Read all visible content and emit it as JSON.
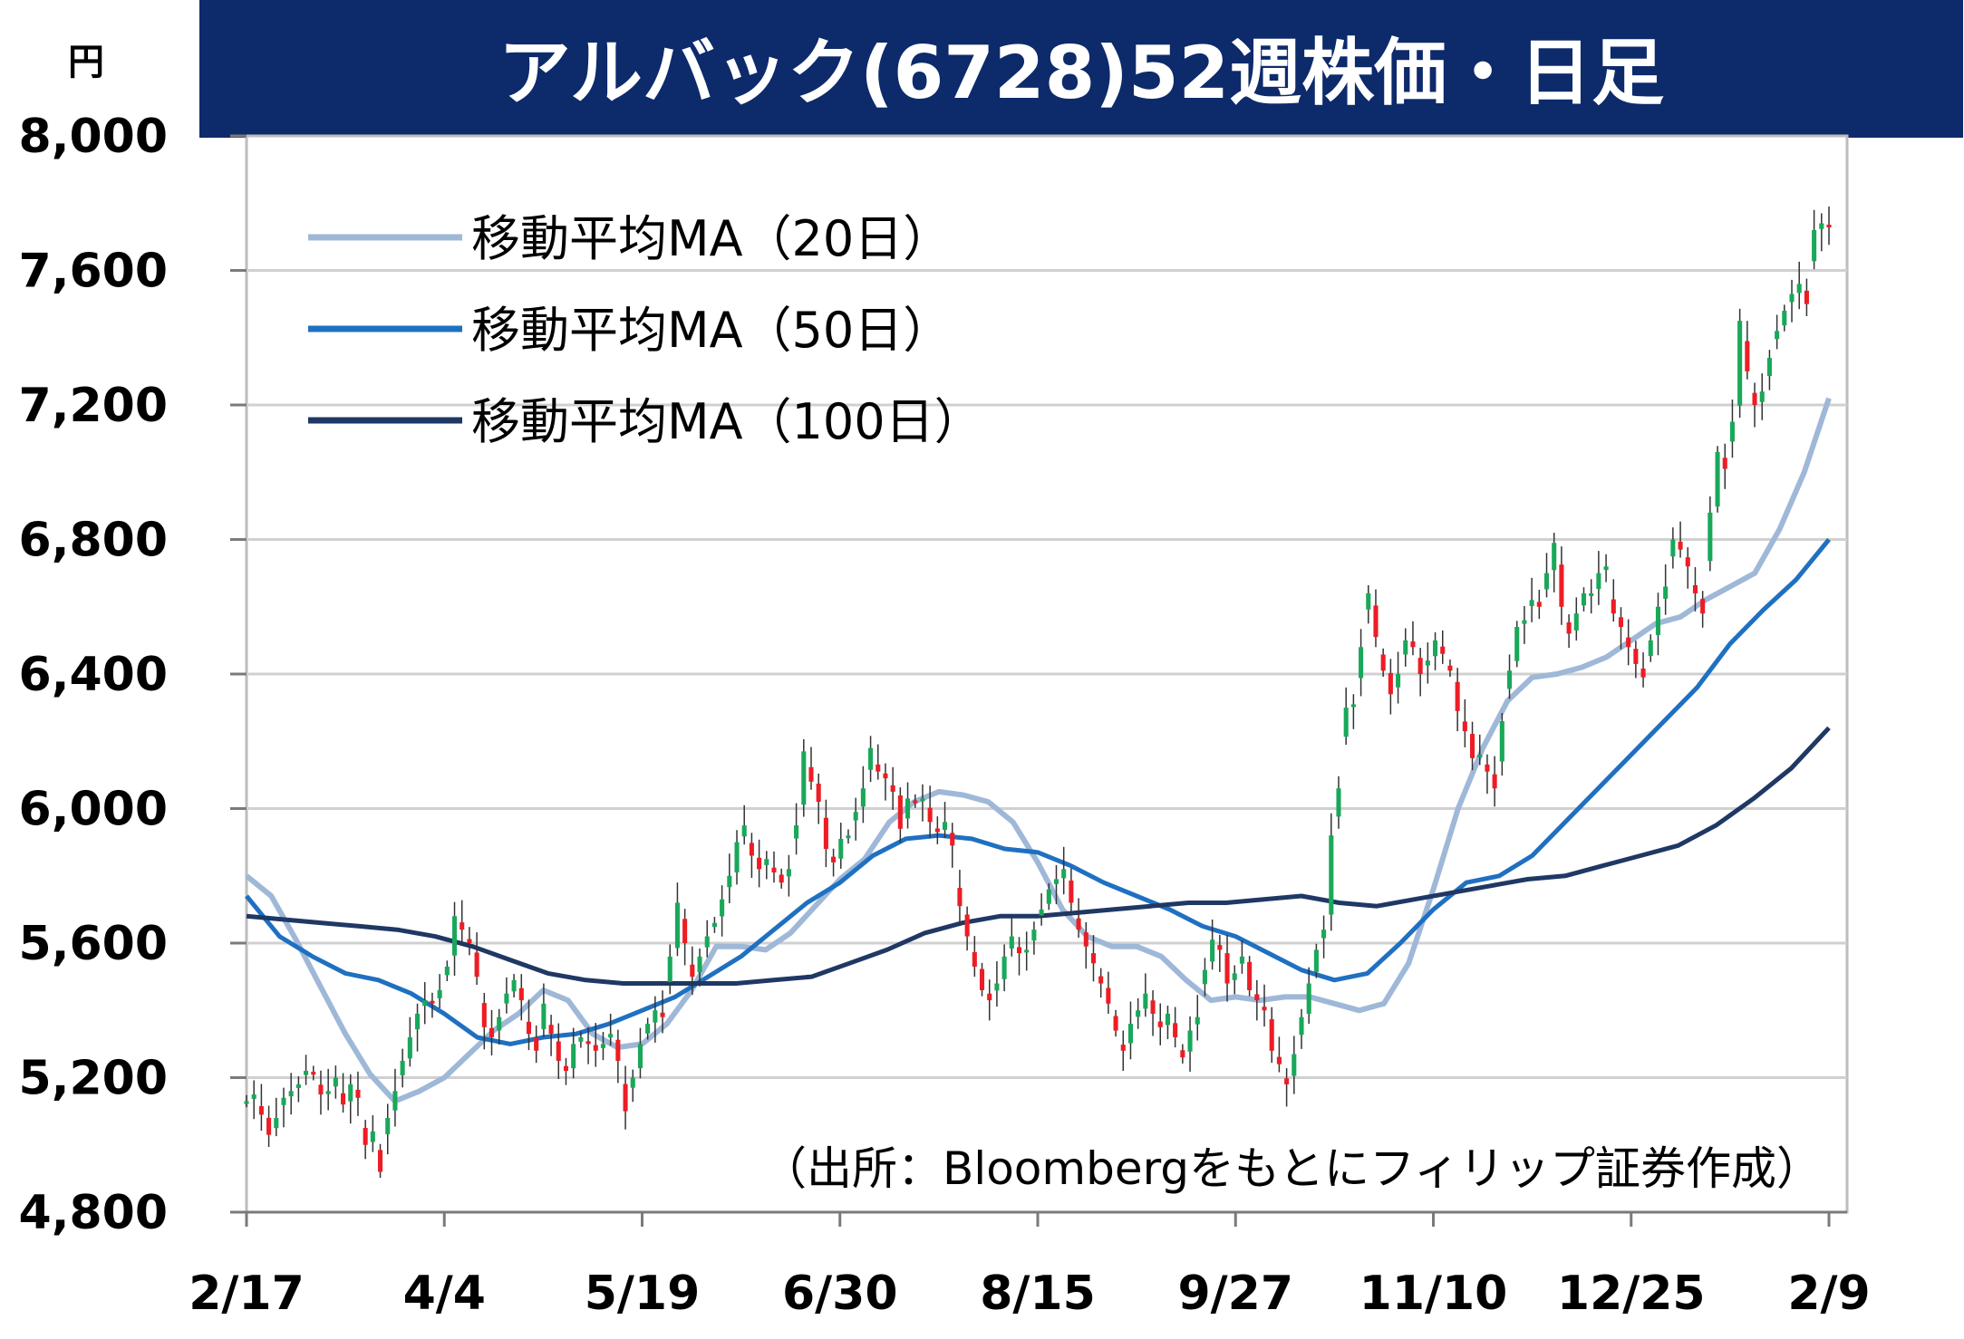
{
  "title": "アルバック(6728)52週株価・日足",
  "y_unit": "円",
  "source_note": "（出所：Bloombergをもとにフィリップ証券作成）",
  "colors": {
    "title_bg": "#0d2a6b",
    "up_candle": "#19a85a",
    "down_candle": "#ee1c24",
    "ma20": "#9fb8d8",
    "ma50": "#1f70c1",
    "ma100": "#1f3864"
  },
  "chart_data": {
    "type": "candlestick",
    "title": "アルバック(6728)52週株価・日足",
    "ylabel": "円",
    "ylim": [
      4800,
      8000
    ],
    "yticks": [
      4800,
      5200,
      5600,
      6000,
      6400,
      6800,
      7200,
      7600,
      8000
    ],
    "ytick_labels": [
      "4,800",
      "5,200",
      "5,600",
      "6,000",
      "6,400",
      "6,800",
      "7,200",
      "7,600",
      "8,000"
    ],
    "xticks": [
      "2/17",
      "4/4",
      "5/19",
      "6/30",
      "8/15",
      "9/27",
      "11/10",
      "12/25",
      "2/9"
    ],
    "grid": true,
    "legend": "top-left",
    "closes": [
      5130,
      5150,
      5090,
      5030,
      5080,
      5140,
      5160,
      5180,
      5220,
      5210,
      5150,
      5160,
      5200,
      5120,
      5180,
      5140,
      5000,
      5040,
      4920,
      5080,
      5160,
      5250,
      5320,
      5390,
      5430,
      5420,
      5460,
      5530,
      5680,
      5640,
      5600,
      5500,
      5350,
      5320,
      5380,
      5450,
      5490,
      5430,
      5330,
      5280,
      5420,
      5330,
      5250,
      5220,
      5300,
      5320,
      5300,
      5280,
      5300,
      5330,
      5250,
      5100,
      5200,
      5300,
      5360,
      5400,
      5380,
      5560,
      5720,
      5600,
      5500,
      5560,
      5620,
      5660,
      5730,
      5800,
      5900,
      5950,
      5860,
      5820,
      5850,
      5810,
      5780,
      5820,
      5950,
      6170,
      6080,
      6020,
      5880,
      5840,
      5910,
      5920,
      5990,
      6060,
      6180,
      6110,
      6090,
      6050,
      5940,
      6030,
      6020,
      6030,
      5960,
      5930,
      5960,
      5890,
      5710,
      5620,
      5530,
      5460,
      5430,
      5480,
      5560,
      5620,
      5570,
      5580,
      5640,
      5700,
      5760,
      5790,
      5820,
      5720,
      5640,
      5590,
      5540,
      5480,
      5420,
      5340,
      5280,
      5360,
      5400,
      5450,
      5390,
      5350,
      5390,
      5320,
      5260,
      5340,
      5380,
      5520,
      5610,
      5580,
      5480,
      5510,
      5560,
      5460,
      5430,
      5400,
      5280,
      5240,
      5180,
      5270,
      5380,
      5480,
      5580,
      5640,
      5920,
      6060,
      6300,
      6310,
      6480,
      6640,
      6510,
      6410,
      6340,
      6400,
      6500,
      6480,
      6400,
      6440,
      6500,
      6460,
      6410,
      6290,
      6230,
      6150,
      6160,
      6110,
      6060,
      6260,
      6410,
      6540,
      6560,
      6620,
      6600,
      6700,
      6790,
      6600,
      6520,
      6580,
      6640,
      6640,
      6700,
      6720,
      6580,
      6540,
      6480,
      6430,
      6390,
      6500,
      6600,
      6660,
      6800,
      6770,
      6720,
      6640,
      6580,
      6880,
      7060,
      7010,
      7150,
      7450,
      7300,
      7200,
      7240,
      7340,
      7420,
      7480,
      7530,
      7560,
      7500,
      7720,
      7740,
      7730
    ],
    "series": [
      {
        "name": "移動平均MA（20日）",
        "values": [
          5800,
          5740,
          5610,
          5470,
          5330,
          5210,
          5130,
          5160,
          5200,
          5270,
          5340,
          5390,
          5460,
          5430,
          5330,
          5290,
          5300,
          5360,
          5460,
          5590,
          5590,
          5580,
          5630,
          5710,
          5790,
          5850,
          5960,
          6020,
          6050,
          6040,
          6020,
          5960,
          5840,
          5700,
          5620,
          5590,
          5590,
          5560,
          5490,
          5430,
          5440,
          5430,
          5440,
          5440,
          5420,
          5400,
          5420,
          5540,
          5760,
          6000,
          6180,
          6320,
          6390,
          6400,
          6420,
          6450,
          6500,
          6550,
          6570,
          6620,
          6660,
          6700,
          6830,
          7000,
          7220
        ]
      },
      {
        "name": "移動平均MA（50日）",
        "values": [
          5740,
          5620,
          5560,
          5510,
          5490,
          5450,
          5390,
          5320,
          5300,
          5320,
          5330,
          5360,
          5400,
          5440,
          5500,
          5560,
          5640,
          5720,
          5780,
          5860,
          5910,
          5920,
          5910,
          5880,
          5870,
          5830,
          5780,
          5740,
          5700,
          5650,
          5620,
          5570,
          5520,
          5490,
          5510,
          5600,
          5700,
          5780,
          5800,
          5860,
          5960,
          6060,
          6160,
          6260,
          6360,
          6490,
          6590,
          6680,
          6800
        ]
      },
      {
        "name": "移動平均MA（100日）",
        "values": [
          5680,
          5670,
          5660,
          5650,
          5640,
          5620,
          5590,
          5550,
          5510,
          5490,
          5480,
          5480,
          5480,
          5480,
          5490,
          5500,
          5540,
          5580,
          5630,
          5660,
          5680,
          5680,
          5690,
          5700,
          5710,
          5720,
          5720,
          5730,
          5740,
          5720,
          5710,
          5730,
          5750,
          5770,
          5790,
          5800,
          5830,
          5860,
          5890,
          5950,
          6030,
          6120,
          6240
        ]
      }
    ]
  }
}
